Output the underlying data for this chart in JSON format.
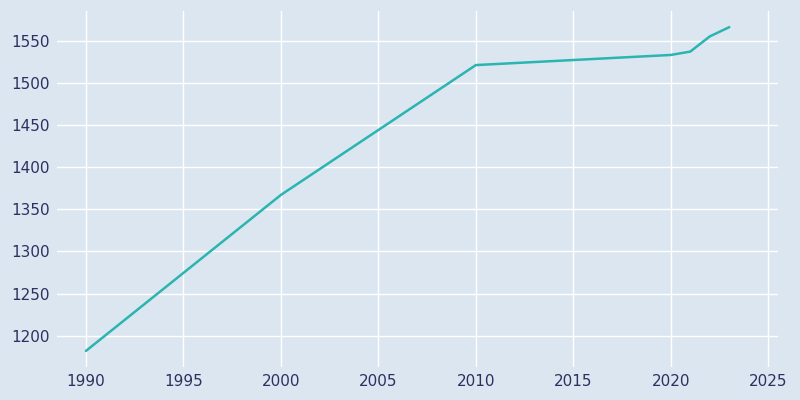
{
  "years": [
    1990,
    2000,
    2010,
    2020,
    2021,
    2022,
    2023
  ],
  "population": [
    1182,
    1367,
    1521,
    1533,
    1537,
    1555,
    1566
  ],
  "line_color": "#2ab5b0",
  "background_color": "#dce6f0",
  "xlim": [
    1988.5,
    2025.5
  ],
  "ylim": [
    1163,
    1585
  ],
  "xticks": [
    1990,
    1995,
    2000,
    2005,
    2010,
    2015,
    2020,
    2025
  ],
  "yticks": [
    1200,
    1250,
    1300,
    1350,
    1400,
    1450,
    1500,
    1550
  ],
  "grid_color": "#ffffff",
  "tick_color": "#2d3060",
  "linewidth": 1.8
}
